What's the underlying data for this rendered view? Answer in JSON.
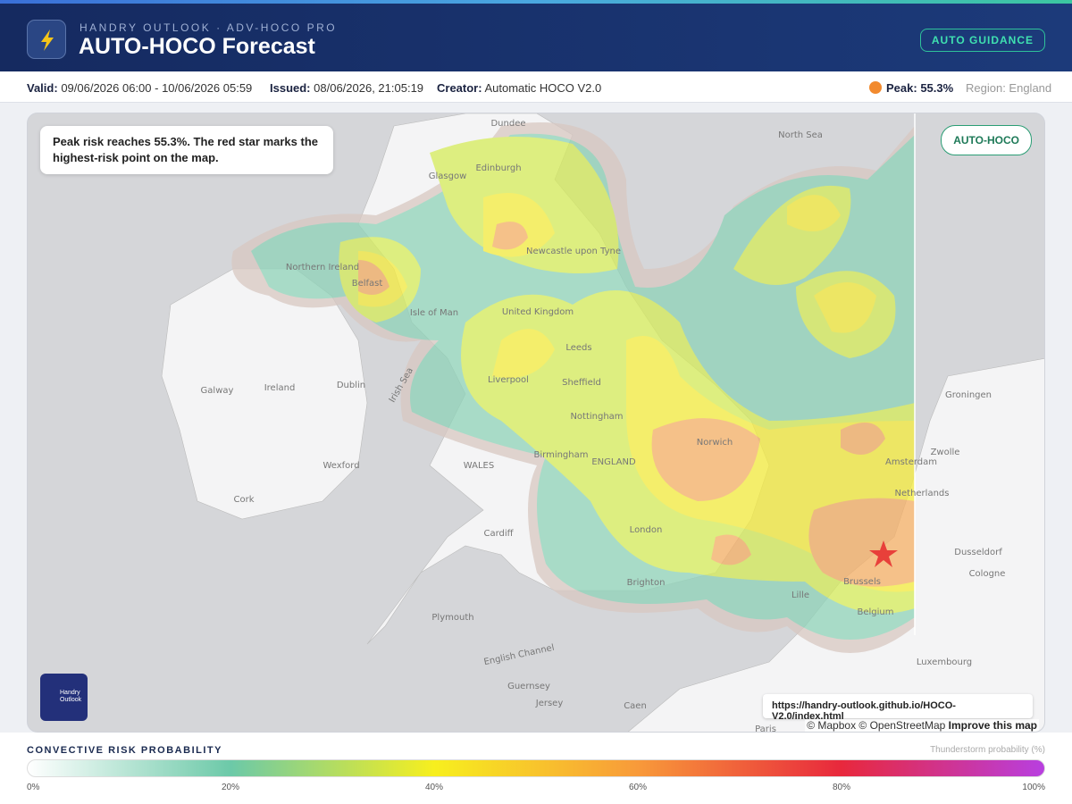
{
  "header": {
    "brand": "HANDRY OUTLOOK · ADV-HOCO PRO",
    "title": "AUTO-HOCO Forecast",
    "badge": "AUTO GUIDANCE"
  },
  "meta": {
    "valid_label": "Valid:",
    "valid": "09/06/2026 06:00 - 10/06/2026 05:59",
    "issued_label": "Issued:",
    "issued": "08/06/2026, 21:05:19",
    "creator_label": "Creator:",
    "creator": "Automatic HOCO V2.0",
    "peak_label": "Peak:",
    "peak": "55.3%",
    "region": "Region: England"
  },
  "map": {
    "note": "Peak risk reaches 55.3%. The red star marks the highest-risk point on the map.",
    "badge": "AUTO-HOCO",
    "logo_text": "Handry Outlook",
    "url": "https://handry-outlook.github.io/HOCO-V2.0/index.html",
    "attribution": "© Mapbox © OpenStreetMap",
    "improve": "Improve this map",
    "labels": [
      "North Sea",
      "Dundee",
      "Edinburgh",
      "Glasgow",
      "Newcastle upon Tyne",
      "Belfast",
      "Northern Ireland",
      "Isle of Man",
      "United Kingdom",
      "Leeds",
      "Ireland",
      "Dublin",
      "Galway",
      "Irish Sea",
      "Liverpool",
      "Sheffield",
      "Nottingham",
      "Norwich",
      "Birmingham",
      "ENGLAND",
      "WALES",
      "Wexford",
      "Cork",
      "Cardiff",
      "London",
      "Brighton",
      "Plymouth",
      "English Channel",
      "Guernsey",
      "Jersey",
      "Caen",
      "Paris",
      "Lille",
      "Brussels",
      "Belgium",
      "Netherlands",
      "Amsterdam",
      "Groningen",
      "Zwolle",
      "Dusseldorf",
      "Cologne",
      "Luxembourg"
    ]
  },
  "legend": {
    "title": "CONVECTIVE RISK PROBABILITY",
    "unit": "Thunderstorm probability (%)",
    "ticks": [
      {
        "value": 0,
        "label": "0%"
      },
      {
        "value": 20,
        "label": "20%"
      },
      {
        "value": 40,
        "label": "40%"
      },
      {
        "value": 60,
        "label": "60%"
      },
      {
        "value": 80,
        "label": "80%"
      },
      {
        "value": 100,
        "label": "100%"
      }
    ],
    "colors": [
      "#ffffff",
      "#6cc9a8",
      "#f7ef1e",
      "#f89a3a",
      "#e8283c",
      "#b83fe0"
    ]
  }
}
